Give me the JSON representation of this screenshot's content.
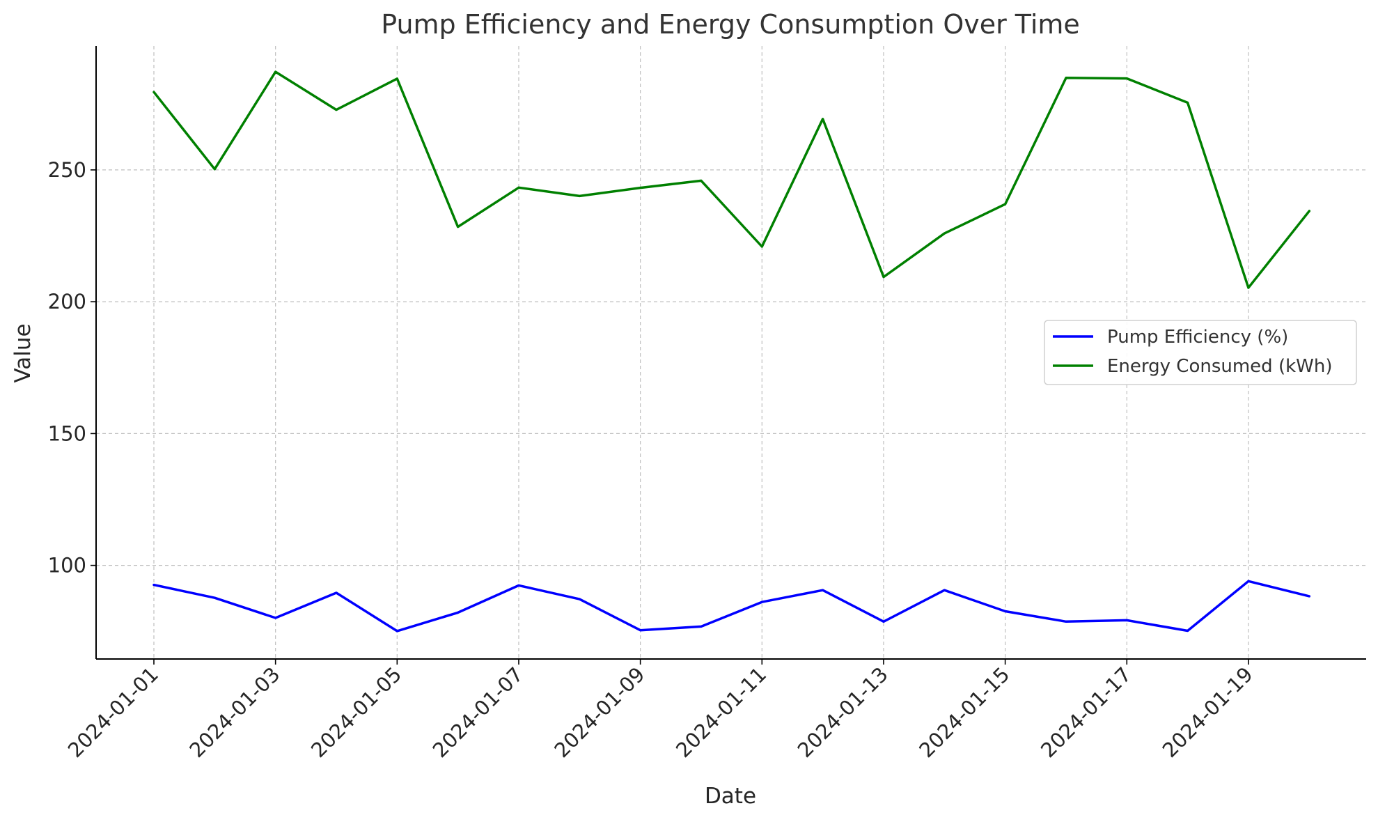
{
  "chart_data": {
    "type": "line",
    "title": "Pump Efficiency and Energy Consumption Over Time",
    "xlabel": "Date",
    "ylabel": "Value",
    "ylim": [
      64.5,
      297
    ],
    "yticks": [
      100,
      150,
      200,
      250
    ],
    "grid": true,
    "legend_position": "center-right",
    "categories": [
      "2024-01-01",
      "2024-01-02",
      "2024-01-03",
      "2024-01-04",
      "2024-01-05",
      "2024-01-06",
      "2024-01-07",
      "2024-01-08",
      "2024-01-09",
      "2024-01-10",
      "2024-01-11",
      "2024-01-12",
      "2024-01-13",
      "2024-01-14",
      "2024-01-15",
      "2024-01-16",
      "2024-01-17",
      "2024-01-18",
      "2024-01-19",
      "2024-01-20"
    ],
    "xticks": [
      "2024-01-01",
      "2024-01-03",
      "2024-01-05",
      "2024-01-07",
      "2024-01-09",
      "2024-01-11",
      "2024-01-13",
      "2024-01-15",
      "2024-01-17",
      "2024-01-19"
    ],
    "series": [
      {
        "name": "Pump Efficiency (%)",
        "color": "#0000ff",
        "values": [
          92.6,
          87.7,
          80.1,
          89.6,
          75.1,
          82.1,
          92.4,
          87.2,
          75.4,
          76.8,
          86.1,
          90.6,
          78.7,
          90.6,
          82.6,
          78.7,
          79.2,
          75.2,
          94.0,
          88.3
        ]
      },
      {
        "name": "Energy Consumed (kWh)",
        "color": "#008000",
        "values": [
          279.5,
          250.3,
          287.2,
          272.8,
          284.6,
          228.4,
          243.3,
          240.1,
          243.2,
          245.9,
          220.9,
          269.3,
          209.4,
          225.9,
          237.0,
          284.9,
          284.7,
          275.5,
          205.3,
          234.4
        ]
      }
    ]
  }
}
